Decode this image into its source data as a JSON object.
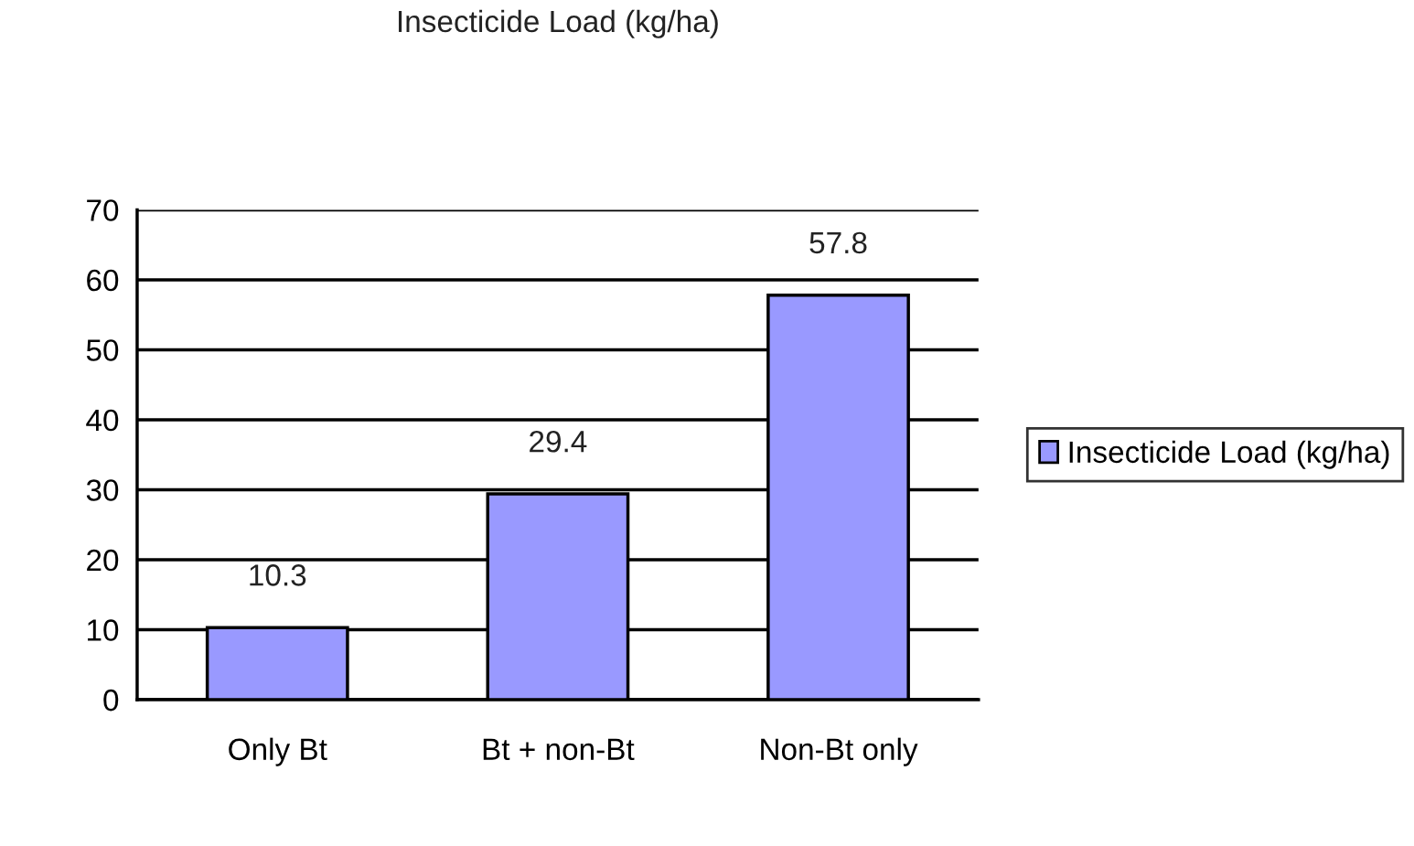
{
  "chart_data": {
    "type": "bar",
    "title": "Insecticide Load (kg/ha)",
    "categories": [
      "Only Bt",
      "Bt + non-Bt",
      "Non-Bt only"
    ],
    "series": [
      {
        "name": "Insecticide Load (kg/ha)",
        "color": "#9999ff",
        "values": [
          10.3,
          29.4,
          57.8
        ]
      }
    ],
    "ylim": [
      0,
      70
    ],
    "yticks": [
      0,
      10,
      20,
      30,
      40,
      50,
      60,
      70
    ],
    "grid": "y",
    "legend": "right",
    "data_labels": true
  }
}
